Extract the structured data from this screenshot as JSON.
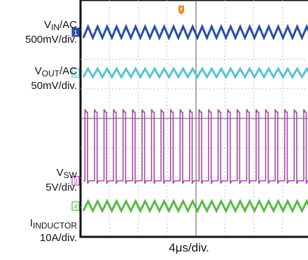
{
  "chart_data": {
    "type": "line",
    "title": "",
    "xlabel": "4μs/div.",
    "grid": true,
    "horizontal_divisions": 8,
    "vertical_divisions": 8,
    "channels": [
      {
        "id": "1",
        "name": "V_IN/AC",
        "scale": "500mV/div.",
        "color": "#2b4fa0",
        "waveform": "triangle",
        "cycles": 24
      },
      {
        "id": "2",
        "name": "V_OUT/AC",
        "scale": "50mV/div.",
        "color": "#57c3d2",
        "waveform": "triangle",
        "cycles": 24
      },
      {
        "id": "3",
        "name": "V_SW",
        "scale": "5V/div.",
        "color": "#a64aa8",
        "waveform": "square",
        "cycles": 24
      },
      {
        "id": "4",
        "name": "I_INDUCTOR",
        "scale": "10A/div.",
        "color": "#5ab847",
        "waveform": "triangle",
        "cycles": 24
      }
    ]
  },
  "labels": {
    "vin_main": "V",
    "vin_sub": "IN",
    "vin_rest": "/AC",
    "vin_scale": "500mV/div.",
    "vout_main": "V",
    "vout_sub": "OUT",
    "vout_rest": "/AC",
    "vout_scale": "50mV/div.",
    "vsw_main": "V",
    "vsw_sub": "SW",
    "vsw_scale": "5V/div.",
    "il_main": "I",
    "il_sub": "INDUCTOR",
    "il_scale": "10A/div."
  },
  "trigger_marker": "T"
}
